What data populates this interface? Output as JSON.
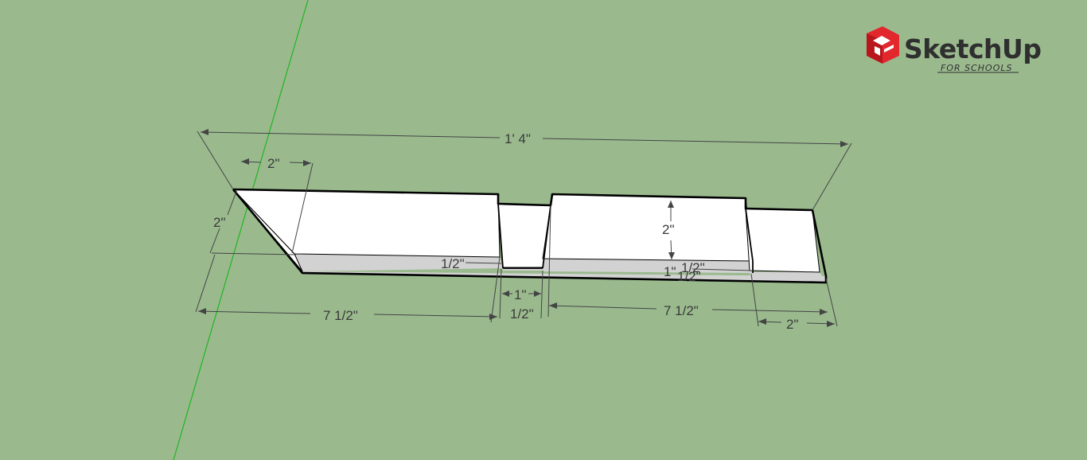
{
  "app": {
    "logo_word": "SketchUp",
    "logo_sub": "FOR SCHOOLS",
    "icon": "sketchup-logo-icon"
  },
  "colors": {
    "background": "#9aba8e",
    "face_top": "#ffffff",
    "face_side": "#d2d2d2",
    "edge": "#000000",
    "dimension": "#444444",
    "green_axis": "#1fb51f",
    "logo_red": "#e2272d"
  },
  "dimensions": {
    "overall_length": "1' 4\"",
    "tip_width": "2\"",
    "tip_height": "2\"",
    "left_notch_depth": "1/2\"",
    "left_length": "7 1/2\"",
    "groove_width": "1\"",
    "groove_offset": "1/2\"",
    "right_length": "7 1/2\"",
    "right_height": "2\"",
    "right_stack_1": "1\"",
    "right_stack_2": "1/2\"",
    "right_stack_3": "1/2\"",
    "tenon_width": "2\""
  }
}
